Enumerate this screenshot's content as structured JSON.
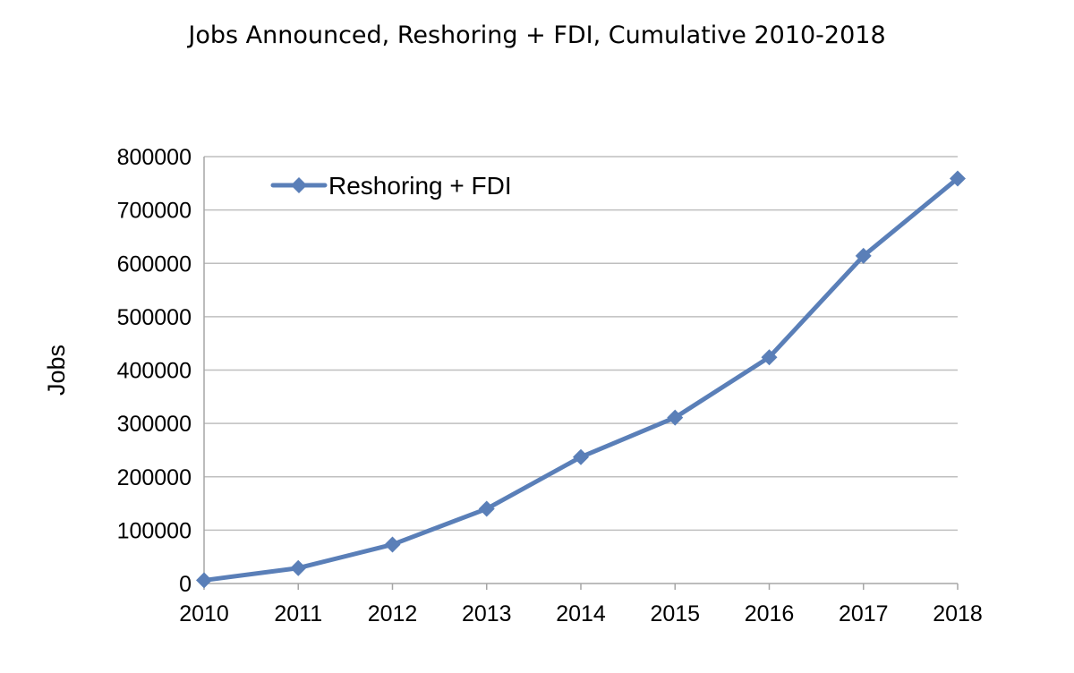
{
  "chart_data": {
    "type": "line",
    "title": "Jobs Announced, Reshoring + FDI, Cumulative 2010-2018",
    "xlabel": "",
    "ylabel": "Jobs",
    "categories": [
      "2010",
      "2011",
      "2012",
      "2013",
      "2014",
      "2015",
      "2016",
      "2017",
      "2018"
    ],
    "series": [
      {
        "name": "Reshoring + FDI",
        "values": [
          6000,
          29000,
          73000,
          140000,
          237000,
          311000,
          424000,
          614000,
          759000
        ]
      }
    ],
    "ylim": [
      0,
      800000
    ],
    "yticks": [
      "0",
      "100000",
      "200000",
      "300000",
      "400000",
      "500000",
      "600000",
      "700000",
      "800000"
    ],
    "grid": true,
    "legend_position": "top-left",
    "colors": {
      "series": "#5a7fb8",
      "grid": "#bfbfbf",
      "axis": "#a6a6a6"
    }
  }
}
